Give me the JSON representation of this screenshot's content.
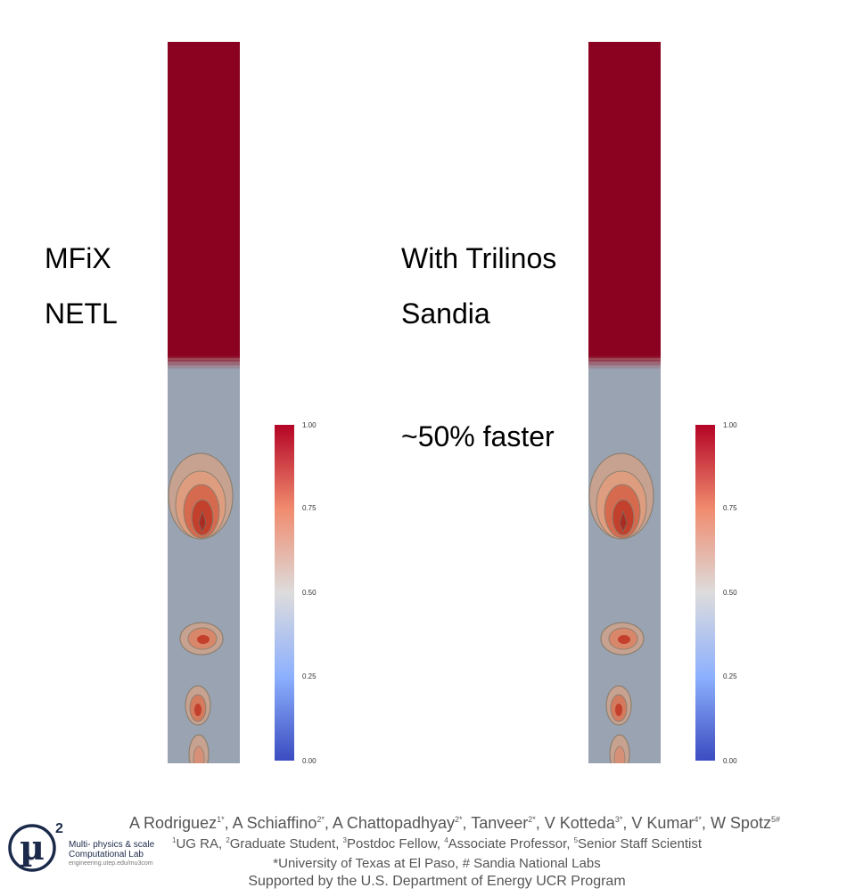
{
  "left": {
    "line1": "MFiX",
    "line2": "NETL",
    "colorbar_ticks": [
      "1.00",
      "0.75",
      "0.50",
      "0.25",
      "0.00"
    ]
  },
  "right": {
    "line1": "With Trilinos",
    "line2": "Sandia",
    "note": "~50%  faster",
    "colorbar_ticks": [
      "1.00",
      "0.75",
      "0.50",
      "0.25",
      "0.00"
    ]
  },
  "colors": {
    "top_fluid": "#8a0220",
    "bed": "#9aa3b2",
    "bubble_edge": "#d7a083",
    "bubble_core": "#b4321f",
    "contour": "#8d8170"
  },
  "footer": {
    "authors": [
      {
        "name": "A Rodriguez",
        "sup": "1*"
      },
      {
        "name": "A Schiaffino",
        "sup": "2*"
      },
      {
        "name": "A Chattopadhyay",
        "sup": "2*"
      },
      {
        "name": "Tanveer",
        "sup": "2*"
      },
      {
        "name": "V Kotteda",
        "sup": "3*"
      },
      {
        "name": "V Kumar",
        "sup": "4*"
      },
      {
        "name": "W Spotz",
        "sup": "5#"
      }
    ],
    "roles": [
      {
        "sup": "1",
        "text": "UG RA"
      },
      {
        "sup": "2",
        "text": "Graduate Student"
      },
      {
        "sup": "3",
        "text": "Postdoc Fellow"
      },
      {
        "sup": "4",
        "text": "Associate Professor"
      },
      {
        "sup": "5",
        "text": "Senior Staff Scientist"
      }
    ],
    "affiliations": "*University of Texas at El Paso, # Sandia National Labs",
    "support": "Supported by the U.S. Department of Energy UCR Program"
  },
  "logo": {
    "symbol": "µ",
    "exponent": "2",
    "line1": "Multi- physics & scale",
    "line2": "Computational Lab",
    "line3": "engineering.utep.edu/mu3com"
  }
}
